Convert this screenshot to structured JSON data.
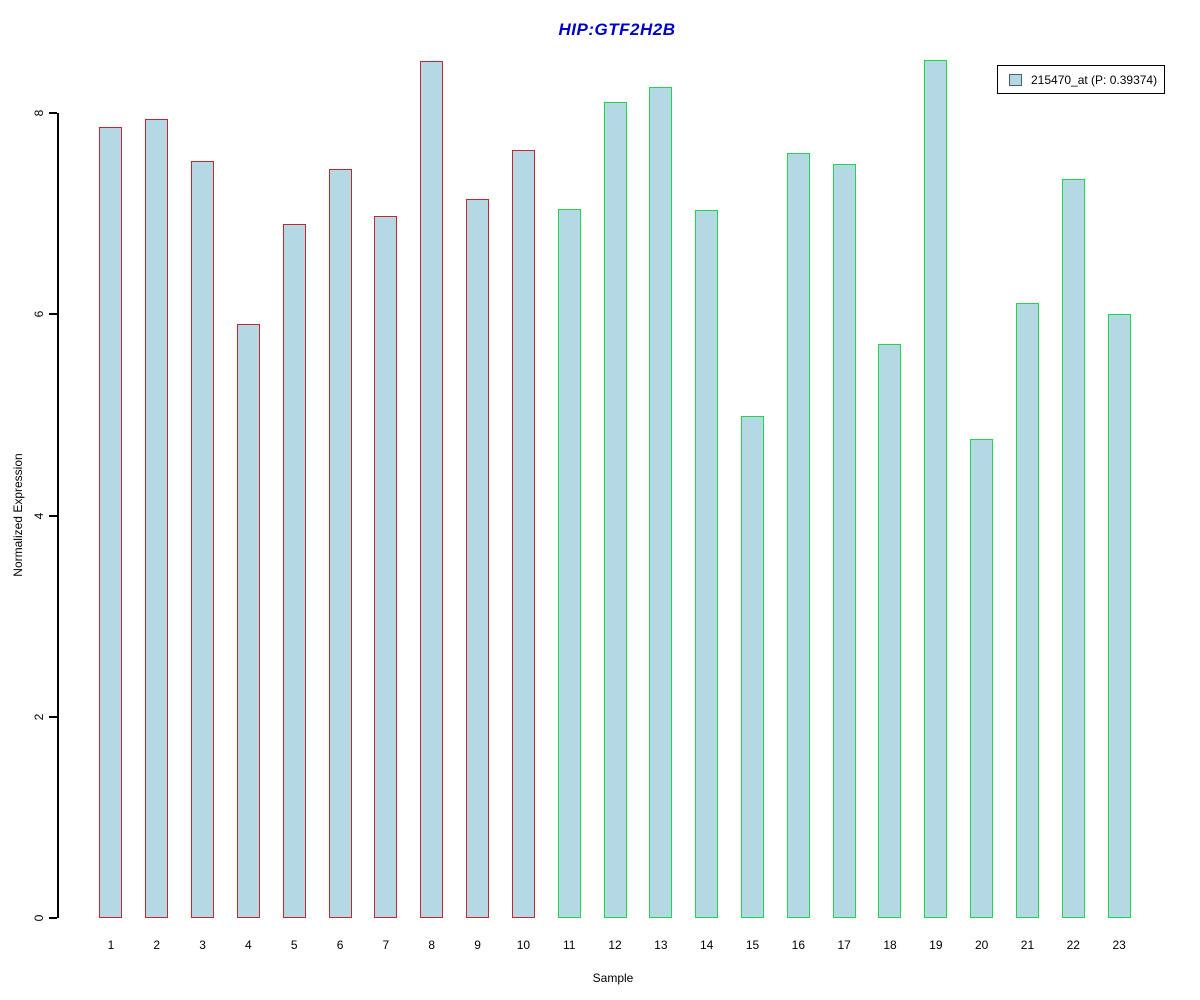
{
  "title": {
    "text": "HIP:GTF2H2B",
    "color": "#0000cc"
  },
  "legend": {
    "label": "215470_at (P: 0.39374)",
    "swatch_fill": "#b4d9e4",
    "swatch_border": "#44606c",
    "position": "top-right"
  },
  "chart_data": {
    "type": "bar",
    "title": "HIP:GTF2H2B",
    "xlabel": "Sample",
    "ylabel": "Normalized Expression",
    "categories": [
      "1",
      "2",
      "3",
      "4",
      "5",
      "6",
      "7",
      "8",
      "9",
      "10",
      "11",
      "12",
      "13",
      "14",
      "15",
      "16",
      "17",
      "18",
      "19",
      "20",
      "21",
      "22",
      "23"
    ],
    "values": [
      7.86,
      7.94,
      7.52,
      5.9,
      6.9,
      7.44,
      6.98,
      8.52,
      7.15,
      7.63,
      7.05,
      8.11,
      8.26,
      7.04,
      4.99,
      7.6,
      7.49,
      5.7,
      8.53,
      4.76,
      6.11,
      7.34,
      6.0
    ],
    "series": [
      {
        "name": "215470_at (P: 0.39374)",
        "group1_samples": "1-10",
        "group2_samples": "11-23"
      }
    ],
    "yticks": [
      0,
      2,
      4,
      6,
      8
    ],
    "ylim": [
      0,
      8.6
    ],
    "grid": false,
    "bar_fill": "#b4d9e4",
    "bar_border_group1": "#c5262d",
    "bar_border_group2": "#1fd848",
    "group_split_index": 10
  }
}
